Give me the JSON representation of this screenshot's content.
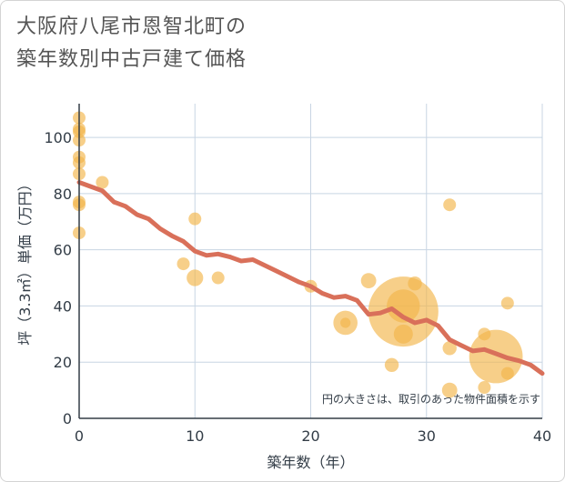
{
  "title_lines": [
    "大阪府八尾市恩智北町の",
    "築年数別中古戸建て価格"
  ],
  "chart_data": {
    "type": "scatter",
    "title": "大阪府八尾市恩智北町の築年数別中古戸建て価格",
    "xlabel": "築年数（年）",
    "ylabel": "坪（3.3㎡）単価（万円）",
    "xlim": [
      0,
      40
    ],
    "ylim": [
      0,
      112
    ],
    "xticks": [
      0,
      10,
      20,
      30,
      40
    ],
    "yticks": [
      0,
      20,
      40,
      60,
      80,
      100
    ],
    "grid": true,
    "note": "円の大きさは、取引のあった物件面積を示す",
    "colors": {
      "bubble": "#f2b54a",
      "trend": "#d9705a",
      "grid": "#c8d5e3",
      "axis": "#333d47"
    },
    "series": [
      {
        "type": "scatter",
        "points": [
          {
            "x": 0,
            "y": 107,
            "size": 1
          },
          {
            "x": 0,
            "y": 103,
            "size": 1
          },
          {
            "x": 0,
            "y": 102,
            "size": 1
          },
          {
            "x": 0,
            "y": 99,
            "size": 1
          },
          {
            "x": 0,
            "y": 93,
            "size": 1
          },
          {
            "x": 0,
            "y": 91,
            "size": 1
          },
          {
            "x": 0,
            "y": 87,
            "size": 1
          },
          {
            "x": 0,
            "y": 77,
            "size": 1
          },
          {
            "x": 0,
            "y": 76,
            "size": 1
          },
          {
            "x": 0,
            "y": 66,
            "size": 1
          },
          {
            "x": 2,
            "y": 84,
            "size": 1
          },
          {
            "x": 10,
            "y": 71,
            "size": 1
          },
          {
            "x": 9,
            "y": 55,
            "size": 1
          },
          {
            "x": 10,
            "y": 50,
            "size": 1.3
          },
          {
            "x": 12,
            "y": 50,
            "size": 1
          },
          {
            "x": 20,
            "y": 47,
            "size": 1
          },
          {
            "x": 23,
            "y": 34,
            "size": 1.9
          },
          {
            "x": 23,
            "y": 34,
            "size": 0.8
          },
          {
            "x": 25,
            "y": 49,
            "size": 1.2
          },
          {
            "x": 27,
            "y": 19,
            "size": 1.1
          },
          {
            "x": 28,
            "y": 38,
            "size": 5.5
          },
          {
            "x": 28,
            "y": 40,
            "size": 2.6
          },
          {
            "x": 28,
            "y": 30,
            "size": 1.5
          },
          {
            "x": 29,
            "y": 48,
            "size": 1.1
          },
          {
            "x": 32,
            "y": 76,
            "size": 1
          },
          {
            "x": 32,
            "y": 25,
            "size": 1.1
          },
          {
            "x": 32,
            "y": 10,
            "size": 1.2
          },
          {
            "x": 35,
            "y": 30,
            "size": 1
          },
          {
            "x": 35,
            "y": 11,
            "size": 1
          },
          {
            "x": 36,
            "y": 22,
            "size": 4.2
          },
          {
            "x": 37,
            "y": 41,
            "size": 1
          },
          {
            "x": 37,
            "y": 16,
            "size": 1
          }
        ]
      },
      {
        "type": "line",
        "x": [
          0,
          1,
          2,
          3,
          4,
          5,
          6,
          7,
          8,
          9,
          10,
          11,
          12,
          13,
          14,
          15,
          16,
          17,
          18,
          19,
          20,
          21,
          22,
          23,
          24,
          25,
          26,
          27,
          28,
          29,
          30,
          31,
          32,
          33,
          34,
          35,
          36,
          37,
          38,
          39,
          40
        ],
        "y": [
          84,
          82.5,
          81,
          77,
          75.5,
          72.5,
          71,
          67.5,
          65,
          63,
          59.5,
          58,
          58.5,
          57.5,
          56,
          56.5,
          54.5,
          52.5,
          50.5,
          48.5,
          47,
          44.5,
          43,
          43.5,
          42,
          37,
          37.5,
          39,
          36,
          34,
          35,
          33,
          28,
          26,
          24,
          24.5,
          23,
          21.5,
          20.5,
          19,
          16
        ]
      }
    ]
  }
}
